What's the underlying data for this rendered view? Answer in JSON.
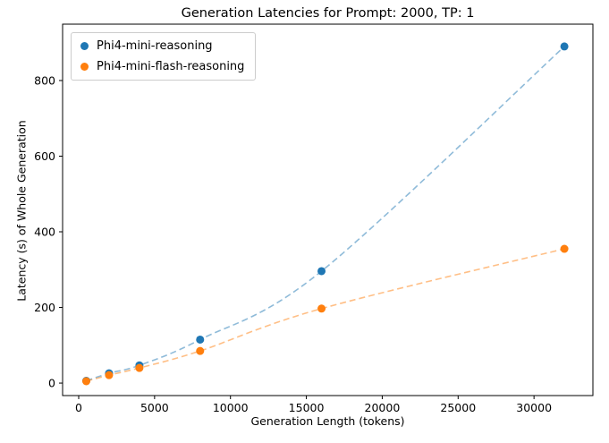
{
  "chart_data": {
    "type": "scatter",
    "title": "Generation Latencies for Prompt: 2000, TP: 1",
    "xlabel": "Generation Length (tokens)",
    "ylabel": "Latency (s) of Whole Generation",
    "x": [
      500,
      2000,
      4000,
      8000,
      16000,
      32000
    ],
    "series": [
      {
        "name": "Phi4-mini-reasoning",
        "color": "#1f77b4",
        "values": [
          6,
          26,
          47,
          115,
          296,
          890
        ]
      },
      {
        "name": "Phi4-mini-flash-reasoning",
        "color": "#ff7f0e",
        "values": [
          5,
          21,
          40,
          85,
          197,
          355
        ]
      }
    ],
    "xticks": [
      0,
      5000,
      10000,
      15000,
      20000,
      25000,
      30000
    ],
    "yticks": [
      0,
      200,
      400,
      600,
      800
    ],
    "xlim": [
      -1060,
      33880
    ],
    "ylim": [
      -33,
      949
    ],
    "grid": false,
    "line_style": "dashed",
    "legend_position": "upper left"
  }
}
